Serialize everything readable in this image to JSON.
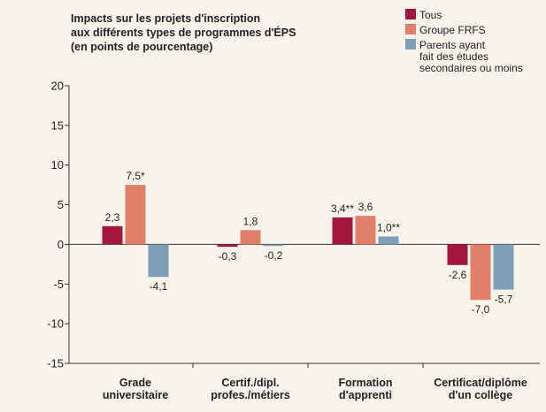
{
  "chart_data": {
    "type": "bar",
    "title": "Impacts sur les projets d'inscription\naux différents types de programmes d'ÉPS\n(en points de pourcentage)",
    "categories": [
      "Grade\nuniversitaire",
      "Certif./dipl.\nprofes./métiers",
      "Formation\nd'apprenti",
      "Certificat/diplôme\nd'un collège"
    ],
    "series": [
      {
        "name": "Tous",
        "color": "#a3173f",
        "values": [
          2.3,
          -0.3,
          3.4,
          -2.6
        ],
        "value_labels": [
          "2,3",
          "-0,3",
          "3,4**",
          "-2,6"
        ]
      },
      {
        "name": "Groupe FRFS",
        "color": "#e07f6a",
        "values": [
          7.5,
          1.8,
          3.6,
          -7.0
        ],
        "value_labels": [
          "7,5*",
          "1,8",
          "3,6",
          "-7,0"
        ]
      },
      {
        "name": "Parents ayant\nfait des études\nsecondaires ou moins",
        "color": "#7f9fb7",
        "values": [
          -4.1,
          -0.2,
          1.0,
          -5.7
        ],
        "value_labels": [
          "-4,1",
          "-0,2",
          "1,0**",
          "-5,7"
        ]
      }
    ],
    "ylim": [
      -15,
      20
    ],
    "yticks": [
      -15,
      -10,
      -5,
      0,
      5,
      10,
      15,
      20
    ],
    "legend": "top-right"
  }
}
